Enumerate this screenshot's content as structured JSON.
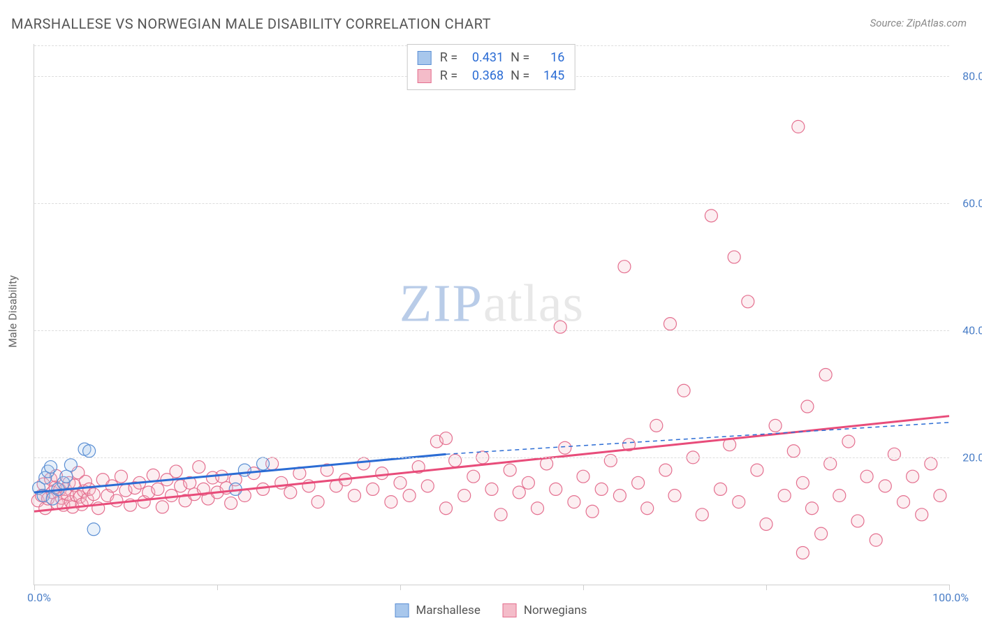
{
  "title": "MARSHALLESE VS NORWEGIAN MALE DISABILITY CORRELATION CHART",
  "source_label": "Source: ZipAtlas.com",
  "ylabel": "Male Disability",
  "watermark": {
    "left": "ZIP",
    "right": "atlas"
  },
  "chart": {
    "type": "scatter",
    "background_color": "#ffffff",
    "grid_color": "#dddddd",
    "axis_color": "#cfcfcf",
    "tick_color": "#4a7ec7",
    "label_color": "#666666",
    "xlim": [
      0,
      100
    ],
    "ylim": [
      0,
      85
    ],
    "ytick_values": [
      20,
      40,
      60,
      80
    ],
    "ytick_labels": [
      "20.0%",
      "40.0%",
      "60.0%",
      "80.0%"
    ],
    "xtick_values": [
      0,
      20,
      40,
      60,
      80,
      100
    ],
    "xtick_left_label": "0.0%",
    "xtick_right_label": "100.0%",
    "marker_radius": 9,
    "marker_stroke_width": 1.2,
    "marker_fill_opacity": 0.25,
    "trend_line_width": 3,
    "trend_dash_width": 1.5
  },
  "series": [
    {
      "key": "marshallese",
      "label": "Marshallese",
      "color_fill": "#a8c7ec",
      "color_stroke": "#5b8fd4",
      "swatch_fill": "#a8c7ec",
      "swatch_border": "#5b8fd4",
      "R": "0.431",
      "N": "16",
      "trend": {
        "x1": 0,
        "y1": 14.5,
        "x2": 45,
        "y2": 20.5,
        "x2_ext": 100,
        "y2_ext": 25.5,
        "solid_limit_x": 45,
        "color": "#2b6cd4"
      },
      "points": [
        [
          0.5,
          15.2
        ],
        [
          1.2,
          16.8
        ],
        [
          1.0,
          14.0
        ],
        [
          1.5,
          17.8
        ],
        [
          1.8,
          18.5
        ],
        [
          2.0,
          13.5
        ],
        [
          2.6,
          15.0
        ],
        [
          3.2,
          16.0
        ],
        [
          3.5,
          17.0
        ],
        [
          4.0,
          18.8
        ],
        [
          5.5,
          21.3
        ],
        [
          6.0,
          21.0
        ],
        [
          6.5,
          8.7
        ],
        [
          22.0,
          15.0
        ],
        [
          23.0,
          18.0
        ],
        [
          25.0,
          19.0
        ]
      ]
    },
    {
      "key": "norwegians",
      "label": "Norwegians",
      "color_fill": "#f4bcc9",
      "color_stroke": "#e46f8f",
      "swatch_fill": "#f4bcc9",
      "swatch_border": "#e46f8f",
      "R": "0.368",
      "N": "145",
      "trend": {
        "x1": 0,
        "y1": 11.5,
        "x2": 100,
        "y2": 26.5,
        "color": "#e84c7a"
      },
      "points": [
        [
          0.4,
          13.2
        ],
        [
          0.8,
          14.0
        ],
        [
          1.0,
          15.8
        ],
        [
          1.2,
          12.0
        ],
        [
          1.5,
          13.5
        ],
        [
          1.8,
          16.6
        ],
        [
          2.0,
          14.5
        ],
        [
          2.3,
          15.3
        ],
        [
          2.4,
          17.1
        ],
        [
          2.5,
          12.8
        ],
        [
          2.8,
          14.9
        ],
        [
          3.0,
          13.6
        ],
        [
          3.2,
          12.5
        ],
        [
          3.4,
          15.0
        ],
        [
          3.6,
          14.2
        ],
        [
          3.8,
          16.0
        ],
        [
          4.0,
          13.0
        ],
        [
          4.2,
          12.2
        ],
        [
          4.4,
          15.6
        ],
        [
          4.6,
          14.0
        ],
        [
          4.8,
          17.6
        ],
        [
          5.0,
          13.8
        ],
        [
          5.2,
          12.6
        ],
        [
          5.4,
          14.7
        ],
        [
          5.6,
          16.2
        ],
        [
          5.8,
          13.4
        ],
        [
          6.0,
          15.0
        ],
        [
          6.5,
          14.2
        ],
        [
          7.0,
          12.0
        ],
        [
          7.5,
          16.5
        ],
        [
          8.0,
          14.0
        ],
        [
          8.5,
          15.5
        ],
        [
          9.0,
          13.2
        ],
        [
          9.5,
          17.0
        ],
        [
          10.0,
          14.8
        ],
        [
          10.5,
          12.5
        ],
        [
          11.0,
          15.2
        ],
        [
          11.5,
          16.0
        ],
        [
          12.0,
          13.0
        ],
        [
          12.5,
          14.5
        ],
        [
          13.0,
          17.2
        ],
        [
          13.5,
          15.0
        ],
        [
          14.0,
          12.2
        ],
        [
          14.5,
          16.5
        ],
        [
          15.0,
          14.0
        ],
        [
          15.5,
          17.8
        ],
        [
          16.0,
          15.5
        ],
        [
          16.5,
          13.2
        ],
        [
          17.0,
          16.0
        ],
        [
          17.5,
          14.2
        ],
        [
          18.0,
          18.5
        ],
        [
          18.5,
          15.0
        ],
        [
          19.0,
          13.5
        ],
        [
          19.5,
          16.8
        ],
        [
          20.0,
          14.5
        ],
        [
          20.5,
          17.0
        ],
        [
          21.0,
          15.2
        ],
        [
          21.5,
          12.8
        ],
        [
          22.0,
          16.5
        ],
        [
          23.0,
          14.0
        ],
        [
          24.0,
          17.5
        ],
        [
          25.0,
          15.0
        ],
        [
          26.0,
          19.0
        ],
        [
          27.0,
          16.0
        ],
        [
          28.0,
          14.5
        ],
        [
          29.0,
          17.5
        ],
        [
          30.0,
          15.5
        ],
        [
          31.0,
          13.0
        ],
        [
          32.0,
          18.0
        ],
        [
          33.0,
          15.5
        ],
        [
          34.0,
          16.5
        ],
        [
          35.0,
          14.0
        ],
        [
          36.0,
          19.0
        ],
        [
          37.0,
          15.0
        ],
        [
          38.0,
          17.5
        ],
        [
          39.0,
          13.0
        ],
        [
          40.0,
          16.0
        ],
        [
          41.0,
          14.0
        ],
        [
          42.0,
          18.5
        ],
        [
          43.0,
          15.5
        ],
        [
          44.0,
          22.5
        ],
        [
          45.0,
          23.0
        ],
        [
          45.0,
          12.0
        ],
        [
          46.0,
          19.5
        ],
        [
          47.0,
          14.0
        ],
        [
          48.0,
          17.0
        ],
        [
          49.0,
          20.0
        ],
        [
          50.0,
          15.0
        ],
        [
          51.0,
          11.0
        ],
        [
          52.0,
          18.0
        ],
        [
          53.0,
          14.5
        ],
        [
          54.0,
          16.0
        ],
        [
          55.0,
          12.0
        ],
        [
          56.0,
          19.0
        ],
        [
          57.0,
          15.0
        ],
        [
          57.5,
          40.5
        ],
        [
          58.0,
          21.5
        ],
        [
          59.0,
          13.0
        ],
        [
          60.0,
          17.0
        ],
        [
          61.0,
          11.5
        ],
        [
          62.0,
          15.0
        ],
        [
          63.0,
          19.5
        ],
        [
          64.0,
          14.0
        ],
        [
          64.5,
          50.0
        ],
        [
          65.0,
          22.0
        ],
        [
          66.0,
          16.0
        ],
        [
          67.0,
          12.0
        ],
        [
          68.0,
          25.0
        ],
        [
          69.0,
          18.0
        ],
        [
          69.5,
          41.0
        ],
        [
          70.0,
          14.0
        ],
        [
          71.0,
          30.5
        ],
        [
          72.0,
          20.0
        ],
        [
          73.0,
          11.0
        ],
        [
          74.0,
          58.0
        ],
        [
          75.0,
          15.0
        ],
        [
          76.0,
          22.0
        ],
        [
          76.5,
          51.5
        ],
        [
          77.0,
          13.0
        ],
        [
          78.0,
          44.5
        ],
        [
          79.0,
          18.0
        ],
        [
          80.0,
          9.5
        ],
        [
          81.0,
          25.0
        ],
        [
          82.0,
          14.0
        ],
        [
          83.0,
          21.0
        ],
        [
          83.5,
          72.0
        ],
        [
          84.0,
          16.0
        ],
        [
          84.5,
          28.0
        ],
        [
          85.0,
          12.0
        ],
        [
          86.0,
          8.0
        ],
        [
          86.5,
          33.0
        ],
        [
          87.0,
          19.0
        ],
        [
          88.0,
          14.0
        ],
        [
          89.0,
          22.5
        ],
        [
          90.0,
          10.0
        ],
        [
          91.0,
          17.0
        ],
        [
          92.0,
          7.0
        ],
        [
          93.0,
          15.5
        ],
        [
          94.0,
          20.5
        ],
        [
          95.0,
          13.0
        ],
        [
          96.0,
          17.0
        ],
        [
          97.0,
          11.0
        ],
        [
          98.0,
          19.0
        ],
        [
          99.0,
          14.0
        ],
        [
          84.0,
          5.0
        ]
      ]
    }
  ],
  "stats_legend": {
    "r_label": "R =",
    "n_label": "N ="
  },
  "bottom_legend_labels": [
    "Marshallese",
    "Norwegians"
  ]
}
